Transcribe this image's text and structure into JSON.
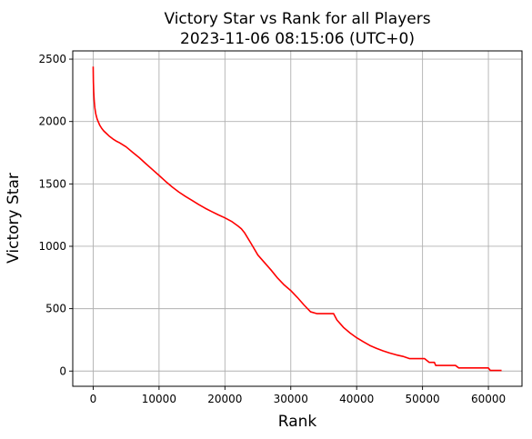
{
  "chart_data": {
    "type": "line",
    "title": "Victory Star vs Rank for all Players",
    "subtitle": "2023-11-06 08:15:06 (UTC+0)",
    "xlabel": "Rank",
    "ylabel": "Victory Star",
    "xlim": [
      -3100,
      65100
    ],
    "ylim": [
      -122,
      2566
    ],
    "xticks": [
      0,
      10000,
      20000,
      30000,
      40000,
      50000,
      60000
    ],
    "yticks": [
      0,
      500,
      1000,
      1500,
      2000,
      2500
    ],
    "grid": true,
    "series": [
      {
        "color": "#ff0000",
        "x": [
          0,
          30,
          80,
          150,
          250,
          400,
          600,
          800,
          1000,
          1300,
          1600,
          2000,
          2500,
          3000,
          3500,
          4000,
          5000,
          6000,
          7000,
          8000,
          9000,
          10000,
          11000,
          12000,
          13000,
          14000,
          15000,
          16000,
          17000,
          18000,
          19000,
          20000,
          21000,
          22000,
          22500,
          23000,
          24000,
          25000,
          26000,
          27000,
          28000,
          29000,
          30000,
          31000,
          32000,
          33000,
          34000,
          34500,
          35000,
          36000,
          36500,
          37000,
          38000,
          39000,
          40000,
          41000,
          42000,
          43000,
          44000,
          45000,
          46000,
          47000,
          48000,
          49000,
          50000,
          50300,
          51000,
          51800,
          52000,
          53000,
          54000,
          55000,
          55500,
          57000,
          59000,
          60000,
          60300,
          61000,
          62000
        ],
        "y": [
          2440,
          2320,
          2240,
          2170,
          2110,
          2060,
          2020,
          1995,
          1970,
          1945,
          1925,
          1905,
          1880,
          1860,
          1843,
          1830,
          1797,
          1753,
          1710,
          1662,
          1615,
          1568,
          1520,
          1475,
          1435,
          1400,
          1368,
          1335,
          1305,
          1278,
          1252,
          1228,
          1200,
          1162,
          1140,
          1107,
          1020,
          930,
          870,
          810,
          745,
          690,
          645,
          590,
          530,
          475,
          460,
          460,
          460,
          460,
          460,
          410,
          350,
          305,
          267,
          235,
          205,
          182,
          162,
          145,
          130,
          118,
          100,
          100,
          100,
          100,
          70,
          70,
          45,
          45,
          45,
          45,
          25,
          25,
          25,
          25,
          5,
          5,
          5
        ]
      }
    ]
  }
}
